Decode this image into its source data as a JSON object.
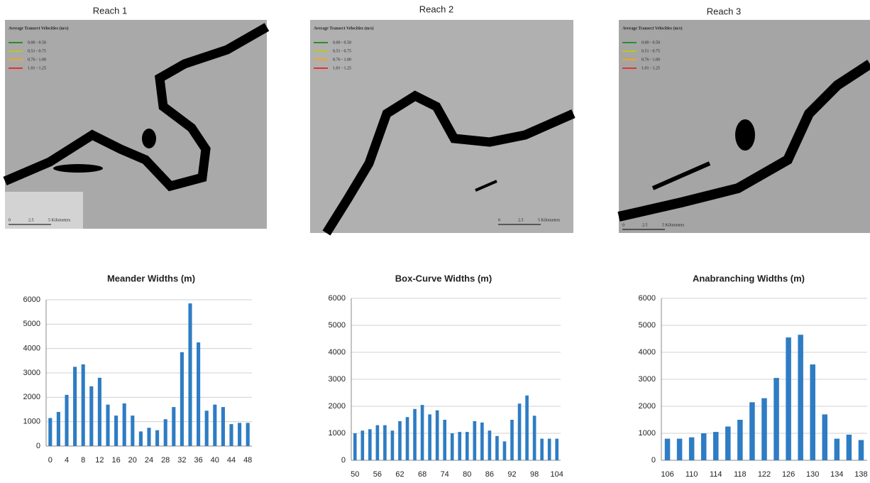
{
  "maps": [
    {
      "title": "Reach 1",
      "legend_title": "Average Transect Velocities (m/s)",
      "legend": [
        {
          "label": "0.00 - 0.50",
          "color": "#2e8b2e"
        },
        {
          "label": "0.51 - 0.75",
          "color": "#b5c828"
        },
        {
          "label": "0.76 - 1.00",
          "color": "#f0a81c"
        },
        {
          "label": "1.01 - 1.25",
          "color": "#e8312a"
        }
      ],
      "scale": [
        "0",
        "2.5",
        "5 Kilometers"
      ]
    },
    {
      "title": "Reach 2",
      "legend_title": "Average Transect Velocities (m/s)",
      "legend": [
        {
          "label": "0.00 - 0.50",
          "color": "#2e8b2e"
        },
        {
          "label": "0.51 - 0.75",
          "color": "#b5c828"
        },
        {
          "label": "0.76 - 1.00",
          "color": "#f0a81c"
        },
        {
          "label": "1.01 - 1.25",
          "color": "#e8312a"
        }
      ],
      "scale": [
        "0",
        "2.5",
        "5 Kilometers"
      ]
    },
    {
      "title": "Reach 3",
      "legend_title": "Average Transect Velocities (m/s)",
      "legend": [
        {
          "label": "0.00 - 0.50",
          "color": "#2e8b2e"
        },
        {
          "label": "0.51 - 0.75",
          "color": "#b5c828"
        },
        {
          "label": "0.76 - 1.00",
          "color": "#f0a81c"
        },
        {
          "label": "1.01 - 1.25",
          "color": "#e8312a"
        }
      ],
      "scale": [
        "0",
        "2.5",
        "5 Kilometers"
      ]
    }
  ],
  "chart_data": [
    {
      "type": "bar",
      "title": "Meander  Widths  (m)",
      "color": "#2e7cc4",
      "categories": [
        "0",
        null,
        "4",
        null,
        "8",
        null,
        "12",
        null,
        "16",
        null,
        "20",
        null,
        "24",
        null,
        "28",
        null,
        "32",
        null,
        "36",
        null,
        "40",
        null,
        "44",
        null,
        "48"
      ],
      "values": [
        1150,
        1400,
        2100,
        3250,
        3350,
        2450,
        2800,
        1700,
        1250,
        1750,
        1250,
        600,
        750,
        650,
        1100,
        1600,
        3850,
        5850,
        4250,
        1450,
        1700,
        1600,
        900,
        950,
        950
      ],
      "ylim": [
        0,
        6000
      ],
      "yticks": [
        0,
        1000,
        2000,
        3000,
        4000,
        5000,
        6000
      ],
      "grid": true
    },
    {
      "type": "bar",
      "title": "Box-Curve Widths  (m)",
      "color": "#2e7cc4",
      "categories": [
        "50",
        null,
        null,
        "56",
        null,
        null,
        "62",
        null,
        null,
        "68",
        null,
        null,
        "74",
        null,
        null,
        "80",
        null,
        null,
        "86",
        null,
        null,
        "92",
        null,
        null,
        "98",
        null,
        null,
        "104"
      ],
      "values": [
        1000,
        1100,
        1150,
        1300,
        1300,
        1100,
        1450,
        1600,
        1900,
        2050,
        1700,
        1850,
        1500,
        1000,
        1050,
        1050,
        1450,
        1400,
        1100,
        900,
        700,
        1500,
        2100,
        2400,
        1650,
        800,
        800,
        800
      ],
      "ylim": [
        0,
        6000
      ],
      "yticks": [
        0,
        1000,
        2000,
        3000,
        4000,
        5000,
        6000
      ],
      "grid": true
    },
    {
      "type": "bar",
      "title": "Anabranching  Widths  (m)",
      "color": "#2e7cc4",
      "categories": [
        "106",
        null,
        "110",
        null,
        "114",
        null,
        "118",
        null,
        "122",
        null,
        "126",
        null,
        "130",
        null,
        "134",
        null,
        "138"
      ],
      "values": [
        800,
        800,
        850,
        1000,
        1050,
        1250,
        1500,
        2150,
        2300,
        3050,
        4550,
        4650,
        3550,
        1700,
        800,
        950,
        750
      ],
      "ylim": [
        0,
        6000
      ],
      "yticks": [
        0,
        1000,
        2000,
        3000,
        4000,
        5000,
        6000
      ],
      "grid": true
    }
  ]
}
